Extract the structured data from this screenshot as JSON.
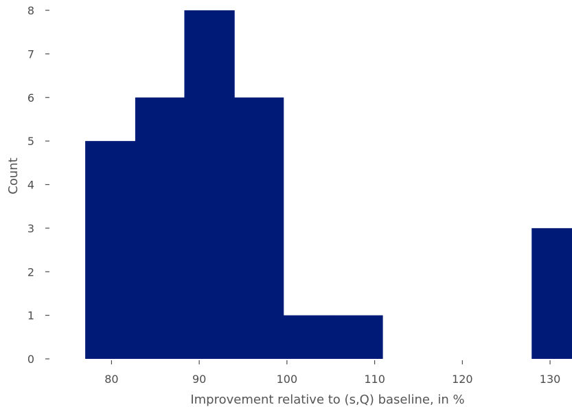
{
  "chart_data": {
    "type": "bar",
    "xlabel": "Improvement relative to (s,Q) baseline, in %",
    "ylabel": "Count",
    "xlim": [
      73.0,
      132.5
    ],
    "ylim": [
      0,
      8
    ],
    "xticks": [
      80,
      90,
      100,
      110,
      120,
      130
    ],
    "yticks": [
      0,
      1,
      2,
      3,
      4,
      5,
      6,
      7,
      8
    ],
    "bins": [
      {
        "x0": 77.0,
        "x1": 82.7,
        "count": 5
      },
      {
        "x0": 82.7,
        "x1": 88.3,
        "count": 6
      },
      {
        "x0": 88.3,
        "x1": 94.0,
        "count": 8
      },
      {
        "x0": 94.0,
        "x1": 99.6,
        "count": 6
      },
      {
        "x0": 99.6,
        "x1": 105.3,
        "count": 1
      },
      {
        "x0": 105.3,
        "x1": 110.9,
        "count": 1
      },
      {
        "x0": 110.9,
        "x1": 116.6,
        "count": 0
      },
      {
        "x0": 116.6,
        "x1": 122.2,
        "count": 0
      },
      {
        "x0": 122.2,
        "x1": 127.9,
        "count": 0
      },
      {
        "x0": 127.9,
        "x1": 133.5,
        "count": 3
      }
    ],
    "bar_color": "#001a78",
    "grid": false
  }
}
